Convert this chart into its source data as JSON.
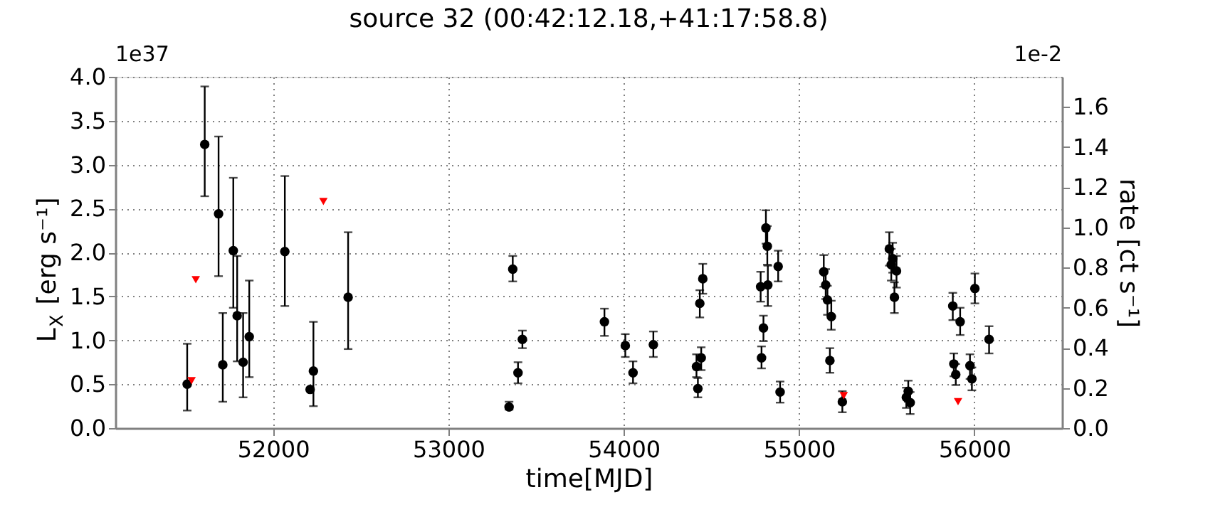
{
  "chart_data": {
    "type": "scatter",
    "title": "source 32    (00:42:12.18,+41:17:58.8)",
    "xlabel": "time[MJD]",
    "ylabel": "L$_{X}$ [erg s⁻¹]",
    "y2label": "rate [ct s⁻¹]",
    "annotations": [
      "1e37",
      "1e-2"
    ],
    "xlim": [
      51100,
      56500
    ],
    "xticks": [
      52000,
      53000,
      54000,
      55000,
      56000
    ],
    "ylim": [
      0,
      4.0
    ],
    "yticks": [
      {
        "value": 0,
        "label": "0.0"
      },
      {
        "value": 0.5,
        "label": "0.5"
      },
      {
        "value": 1,
        "label": "1.0"
      },
      {
        "value": 1.5,
        "label": "1.5"
      },
      {
        "value": 2,
        "label": "2.0"
      },
      {
        "value": 2.5,
        "label": "2.5"
      },
      {
        "value": 3,
        "label": "3.0"
      },
      {
        "value": 3.5,
        "label": "3.5"
      },
      {
        "value": 4,
        "label": "4.0"
      }
    ],
    "y2lim": [
      0,
      1.75
    ],
    "y2ticks": [
      {
        "value": 0,
        "label": "0.0"
      },
      {
        "value": 0.2,
        "label": "0.2"
      },
      {
        "value": 0.4,
        "label": "0.4"
      },
      {
        "value": 0.6,
        "label": "0.6"
      },
      {
        "value": 0.8,
        "label": "0.8"
      },
      {
        "value": 1,
        "label": "1.0"
      },
      {
        "value": 1.2,
        "label": "1.2"
      },
      {
        "value": 1.4,
        "label": "1.4"
      },
      {
        "value": 1.6,
        "label": "1.6"
      }
    ],
    "grid": true,
    "series": [
      {
        "color": "#000000",
        "marker": "circle",
        "x": [
          51510,
          51610,
          51689,
          51713,
          51773,
          51795,
          51829,
          51864,
          52067,
          52211,
          52230,
          52428,
          53346,
          53367,
          53397,
          53422,
          53890,
          54009,
          54053,
          54169,
          54415,
          54423,
          54434,
          54442,
          54451,
          54781,
          54786,
          54797,
          54811,
          54819,
          54822,
          54881,
          54892,
          55141,
          55152,
          55162,
          55184,
          55176,
          55247,
          55515,
          55526,
          55534,
          55556,
          55544,
          55612,
          55623,
          55634,
          55877,
          55883,
          55894,
          55919,
          55975,
          55986,
          56003,
          56084
        ],
        "values": [
          0.5,
          3.23,
          2.44,
          0.72,
          2.02,
          1.28,
          0.75,
          1.04,
          2.01,
          0.44,
          0.65,
          1.49,
          0.24,
          1.81,
          0.63,
          1.01,
          1.21,
          0.94,
          0.63,
          0.95,
          0.7,
          0.45,
          1.42,
          0.8,
          1.7,
          1.61,
          0.8,
          1.14,
          2.28,
          2.07,
          1.63,
          1.84,
          0.41,
          1.78,
          1.63,
          1.46,
          1.27,
          0.77,
          0.3,
          2.04,
          1.86,
          1.93,
          1.79,
          1.49,
          0.35,
          0.42,
          0.29,
          1.39,
          0.73,
          0.61,
          1.21,
          0.71,
          0.56,
          1.59,
          1.01
        ],
        "errors": [
          [
            0.2,
            0.96
          ],
          [
            2.64,
            3.89
          ],
          [
            1.73,
            3.32
          ],
          [
            0.3,
            1.31
          ],
          [
            1.37,
            2.85
          ],
          [
            0.76,
            1.96
          ],
          [
            0.35,
            1.31
          ],
          [
            0.58,
            1.68
          ],
          [
            1.39,
            2.87
          ],
          null,
          [
            0.25,
            1.21
          ],
          [
            0.9,
            2.23
          ],
          [
            0.21,
            0.3
          ],
          [
            1.67,
            1.96
          ],
          [
            0.51,
            0.75
          ],
          [
            0.91,
            1.11
          ],
          [
            1.05,
            1.36
          ],
          [
            0.81,
            1.07
          ],
          [
            0.51,
            0.76
          ],
          [
            0.81,
            1.1
          ],
          [
            0.58,
            0.84
          ],
          [
            0.35,
            0.57
          ],
          [
            1.26,
            1.57
          ],
          [
            0.66,
            0.92
          ],
          [
            1.53,
            1.87
          ],
          [
            1.44,
            1.78
          ],
          [
            0.68,
            0.93
          ],
          [
            0.99,
            1.28
          ],
          [
            2.1,
            2.48
          ],
          [
            1.86,
            2.3
          ],
          [
            1.39,
            1.85
          ],
          [
            1.67,
            2.02
          ],
          [
            0.29,
            0.53
          ],
          [
            1.61,
            1.97
          ],
          [
            1.47,
            1.81
          ],
          [
            1.29,
            1.62
          ],
          [
            1.12,
            1.45
          ],
          [
            0.63,
            0.91
          ],
          [
            0.18,
            0.42
          ],
          [
            1.85,
            2.23
          ],
          [
            1.68,
            2.04
          ],
          [
            1.77,
            2.11
          ],
          [
            1.6,
            1.96
          ],
          [
            1.31,
            1.66
          ],
          [
            0.23,
            0.46
          ],
          [
            0.3,
            0.54
          ],
          [
            0.16,
            0.41
          ],
          [
            1.23,
            1.54
          ],
          [
            0.59,
            0.85
          ],
          [
            0.49,
            0.73
          ],
          [
            1.06,
            1.37
          ],
          [
            0.56,
            0.84
          ],
          [
            0.43,
            0.69
          ],
          [
            1.42,
            1.76
          ],
          [
            0.85,
            1.16
          ]
        ]
      },
      {
        "color": "#ff0000",
        "marker": "triangle",
        "x": [
          51535,
          51559,
          52287,
          55255,
          55907
        ],
        "values": [
          0.54,
          1.69,
          2.58,
          0.37,
          0.3
        ]
      }
    ]
  }
}
